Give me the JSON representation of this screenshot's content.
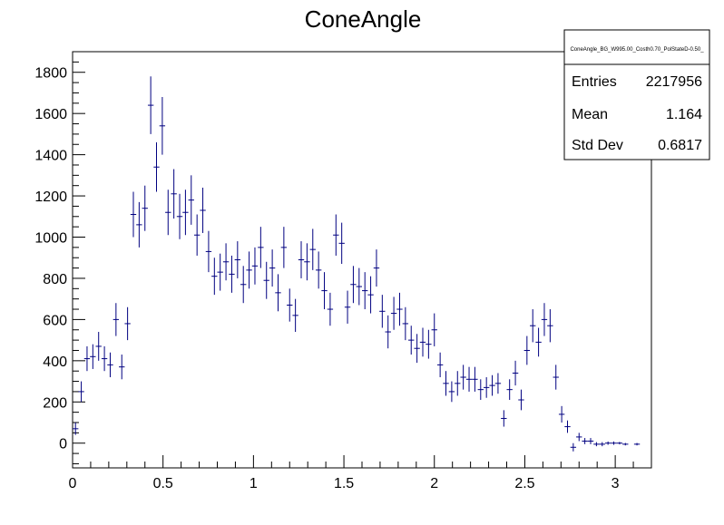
{
  "chart_data": {
    "type": "scatter",
    "title": "ConeAngle",
    "xlabel": "",
    "ylabel": "",
    "xlim": [
      0,
      3.2
    ],
    "ylim": [
      -120,
      1900
    ],
    "x_ticks": [
      "0",
      "0.5",
      "1",
      "1.5",
      "2",
      "2.5",
      "3"
    ],
    "x_tick_values": [
      0,
      0.5,
      1,
      1.5,
      2,
      2.5,
      3
    ],
    "y_ticks": [
      "0",
      "200",
      "400",
      "600",
      "800",
      "1000",
      "1200",
      "1400",
      "1600",
      "1800"
    ],
    "y_tick_values": [
      0,
      200,
      400,
      600,
      800,
      1000,
      1200,
      1400,
      1600,
      1800
    ],
    "marker_color": "#000080",
    "bin_halfwidth": 0.016,
    "series": [
      {
        "x": [
          0.016,
          0.048,
          0.08,
          0.112,
          0.144,
          0.176,
          0.208,
          0.24,
          0.272,
          0.304,
          0.336,
          0.368,
          0.4,
          0.432,
          0.464,
          0.496,
          0.528,
          0.56,
          0.592,
          0.624,
          0.656,
          0.688,
          0.72,
          0.752,
          0.784,
          0.816,
          0.848,
          0.88,
          0.912,
          0.944,
          0.976,
          1.008,
          1.04,
          1.072,
          1.104,
          1.136,
          1.168,
          1.2,
          1.232,
          1.264,
          1.296,
          1.328,
          1.36,
          1.392,
          1.424,
          1.456,
          1.488,
          1.52,
          1.552,
          1.584,
          1.616,
          1.648,
          1.68,
          1.712,
          1.744,
          1.776,
          1.808,
          1.84,
          1.872,
          1.904,
          1.936,
          1.968,
          2.0,
          2.032,
          2.064,
          2.096,
          2.128,
          2.16,
          2.192,
          2.224,
          2.256,
          2.288,
          2.32,
          2.352,
          2.384,
          2.416,
          2.448,
          2.48,
          2.512,
          2.544,
          2.576,
          2.608,
          2.64,
          2.672,
          2.704,
          2.736,
          2.768,
          2.8,
          2.832,
          2.864,
          2.896,
          2.928,
          2.96,
          2.992,
          3.024,
          3.056,
          3.12
        ],
        "y": [
          70,
          250,
          410,
          420,
          470,
          410,
          380,
          600,
          370,
          580,
          1110,
          1060,
          1140,
          1640,
          1340,
          1540,
          1120,
          1210,
          1100,
          1120,
          1180,
          1010,
          1130,
          930,
          810,
          830,
          880,
          820,
          890,
          770,
          840,
          860,
          950,
          790,
          850,
          730,
          950,
          670,
          620,
          890,
          880,
          940,
          840,
          740,
          650,
          1010,
          970,
          660,
          770,
          760,
          740,
          720,
          850,
          640,
          540,
          630,
          650,
          580,
          500,
          460,
          490,
          480,
          550,
          380,
          290,
          250,
          290,
          320,
          310,
          310,
          260,
          270,
          280,
          290,
          120,
          260,
          340,
          210,
          450,
          570,
          490,
          600,
          570,
          320,
          140,
          80,
          -20,
          30,
          10,
          10,
          -5,
          -5,
          0,
          0,
          0,
          -5,
          -5
        ],
        "err": [
          30,
          50,
          60,
          60,
          70,
          60,
          60,
          80,
          60,
          80,
          110,
          110,
          110,
          140,
          120,
          140,
          110,
          120,
          110,
          110,
          120,
          100,
          110,
          100,
          90,
          90,
          90,
          90,
          90,
          90,
          90,
          90,
          100,
          90,
          90,
          90,
          100,
          80,
          80,
          90,
          90,
          100,
          90,
          90,
          80,
          100,
          100,
          80,
          90,
          90,
          90,
          90,
          90,
          80,
          80,
          80,
          80,
          80,
          70,
          70,
          70,
          70,
          80,
          60,
          60,
          50,
          60,
          60,
          60,
          60,
          50,
          50,
          50,
          50,
          40,
          50,
          60,
          50,
          70,
          80,
          70,
          80,
          80,
          60,
          40,
          30,
          20,
          20,
          15,
          15,
          10,
          10,
          8,
          8,
          6,
          6,
          6
        ]
      }
    ]
  },
  "stats": {
    "name": "ConeAngle_BG_W995.00_Costh0.70_PolStateD-0.50_",
    "rows": [
      {
        "label": "Entries",
        "value": "2217956"
      },
      {
        "label": "Mean",
        "value": "1.164"
      },
      {
        "label": "Std Dev",
        "value": "0.6817"
      }
    ]
  }
}
